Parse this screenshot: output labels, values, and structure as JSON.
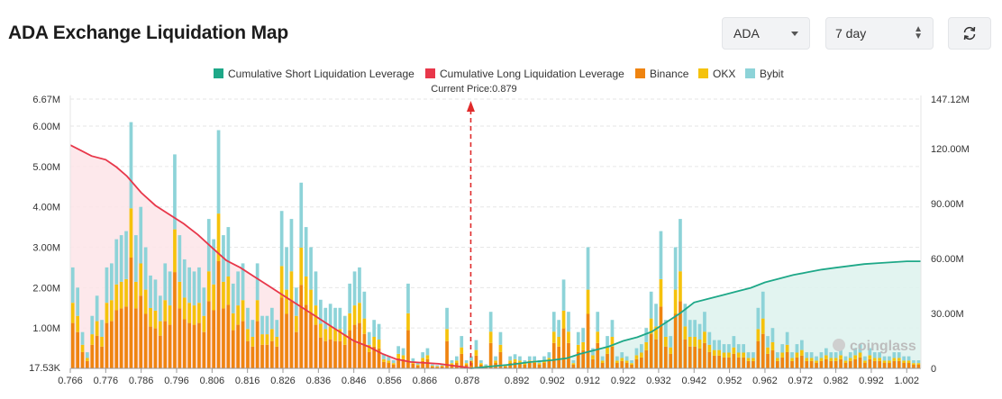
{
  "header": {
    "title": "ADA Exchange Liquidation Map",
    "coin_select": "ADA",
    "range_select": "7 day",
    "refresh_icon": "refresh-icon"
  },
  "watermark": "coinglass",
  "colors": {
    "short_line": "#1ea888",
    "long_line": "#e8374a",
    "binance": "#ef8410",
    "okx": "#f5c20c",
    "bybit": "#8dd3d8",
    "long_fill": "#fde4e7",
    "short_fill": "#dff3ee",
    "price_marker": "#e02a2a"
  },
  "chart_data": {
    "type": "bar",
    "current_price_label": "Current Price:0.879",
    "current_price": 0.879,
    "legend": [
      {
        "name": "Cumulative Short Liquidation Leverage",
        "color": "#1ea888",
        "key": "short"
      },
      {
        "name": "Cumulative Long Liquidation Leverage",
        "color": "#e8374a",
        "key": "long"
      },
      {
        "name": "Binance",
        "color": "#ef8410",
        "key": "binance"
      },
      {
        "name": "OKX",
        "color": "#f5c20c",
        "key": "okx"
      },
      {
        "name": "Bybit",
        "color": "#8dd3d8",
        "key": "bybit"
      }
    ],
    "x_ticks": [
      "0.766",
      "0.776",
      "0.786",
      "0.796",
      "0.806",
      "0.816",
      "0.826",
      "0.836",
      "0.846",
      "0.856",
      "0.866",
      "0.878",
      "0.892",
      "0.902",
      "0.912",
      "0.922",
      "0.932",
      "0.942",
      "0.952",
      "0.962",
      "0.972",
      "0.982",
      "0.992",
      "1.002"
    ],
    "y_left_ticks": [
      "17.53K",
      "1.00M",
      "2.00M",
      "3.00M",
      "4.00M",
      "5.00M",
      "6.00M",
      "6.67M"
    ],
    "y_left_max": 6670000,
    "y_right_ticks": [
      "0",
      "30.00M",
      "60.00M",
      "90.00M",
      "120.00M",
      "147.12M"
    ],
    "y_right_max": 147120000,
    "bar_totals_M": [
      2.5,
      2.0,
      0.9,
      0.4,
      1.3,
      1.8,
      1.2,
      2.5,
      2.6,
      3.2,
      3.3,
      3.4,
      6.1,
      3.3,
      4.0,
      3.0,
      2.3,
      2.2,
      1.8,
      2.6,
      2.4,
      5.3,
      3.3,
      2.7,
      2.5,
      2.4,
      2.5,
      2.0,
      3.7,
      3.2,
      5.9,
      3.3,
      3.5,
      2.1,
      2.4,
      2.6,
      1.5,
      1.2,
      2.6,
      1.3,
      1.3,
      1.5,
      1.2,
      3.9,
      3.0,
      3.7,
      2.0,
      4.6,
      3.5,
      3.0,
      2.4,
      1.7,
      1.5,
      1.6,
      1.5,
      1.5,
      1.3,
      2.1,
      2.4,
      2.5,
      1.9,
      0.9,
      1.2,
      1.1,
      0.35,
      0.3,
      0.2,
      0.55,
      0.5,
      2.1,
      0.25,
      0.15,
      0.4,
      0.5,
      0.1,
      0.08,
      0.1,
      1.5,
      0.2,
      0.3,
      0.8,
      0.2,
      0.3,
      0.7,
      0.2,
      0.1,
      1.4,
      0.3,
      0.9,
      0.1,
      0.3,
      0.35,
      0.3,
      0.2,
      0.3,
      0.3,
      0.2,
      0.3,
      0.4,
      1.4,
      1.2,
      2.2,
      1.4,
      0.2,
      0.9,
      1.0,
      3.0,
      0.5,
      1.4,
      0.3,
      0.8,
      1.2,
      0.3,
      0.4,
      0.3,
      0.2,
      0.5,
      0.6,
      1.0,
      1.9,
      1.6,
      3.4,
      1.2,
      0.8,
      3.0,
      3.7,
      1.6,
      1.2,
      1.2,
      1.1,
      1.4,
      0.9,
      0.7,
      0.7,
      0.6,
      0.6,
      0.8,
      0.6,
      0.6,
      0.4,
      0.4,
      1.5,
      1.9,
      0.8,
      1.0,
      0.4,
      0.6,
      0.9,
      0.4,
      0.6,
      0.7,
      0.4,
      0.4,
      0.3,
      0.4,
      0.5,
      0.4,
      0.4,
      0.5,
      0.3,
      0.4,
      0.5,
      0.6,
      0.3,
      0.5,
      0.4,
      0.4,
      0.3,
      0.3,
      0.4,
      0.4,
      0.3,
      0.3,
      0.2,
      0.2
    ],
    "long_cumulative_points_M": [
      [
        0.766,
        122
      ],
      [
        0.769,
        119
      ],
      [
        0.772,
        116
      ],
      [
        0.776,
        114
      ],
      [
        0.779,
        110
      ],
      [
        0.782,
        105
      ],
      [
        0.786,
        96
      ],
      [
        0.79,
        89
      ],
      [
        0.794,
        84
      ],
      [
        0.798,
        79
      ],
      [
        0.802,
        73
      ],
      [
        0.806,
        66
      ],
      [
        0.81,
        59
      ],
      [
        0.814,
        55
      ],
      [
        0.818,
        50
      ],
      [
        0.822,
        45
      ],
      [
        0.826,
        40
      ],
      [
        0.83,
        35
      ],
      [
        0.834,
        30
      ],
      [
        0.838,
        25
      ],
      [
        0.842,
        20
      ],
      [
        0.846,
        15
      ],
      [
        0.85,
        12
      ],
      [
        0.854,
        8
      ],
      [
        0.858,
        5
      ],
      [
        0.862,
        3.5
      ],
      [
        0.866,
        3
      ],
      [
        0.87,
        2.5
      ],
      [
        0.874,
        1.5
      ],
      [
        0.878,
        0.5
      ],
      [
        0.879,
        0
      ]
    ],
    "short_cumulative_points_M": [
      [
        0.879,
        0
      ],
      [
        0.884,
        1
      ],
      [
        0.89,
        2
      ],
      [
        0.896,
        3.5
      ],
      [
        0.902,
        4.5
      ],
      [
        0.906,
        5.5
      ],
      [
        0.91,
        8
      ],
      [
        0.914,
        10
      ],
      [
        0.918,
        12
      ],
      [
        0.922,
        15
      ],
      [
        0.926,
        17
      ],
      [
        0.93,
        20
      ],
      [
        0.934,
        25
      ],
      [
        0.938,
        30
      ],
      [
        0.942,
        36
      ],
      [
        0.946,
        38
      ],
      [
        0.95,
        40
      ],
      [
        0.954,
        42
      ],
      [
        0.958,
        44
      ],
      [
        0.962,
        47
      ],
      [
        0.966,
        49
      ],
      [
        0.97,
        51
      ],
      [
        0.974,
        52.5
      ],
      [
        0.978,
        54
      ],
      [
        0.982,
        55
      ],
      [
        0.986,
        56
      ],
      [
        0.99,
        57
      ],
      [
        0.994,
        57.5
      ],
      [
        0.998,
        58
      ],
      [
        1.002,
        58.5
      ],
      [
        1.006,
        58.5
      ]
    ],
    "x_range": [
      0.766,
      1.006
    ]
  }
}
